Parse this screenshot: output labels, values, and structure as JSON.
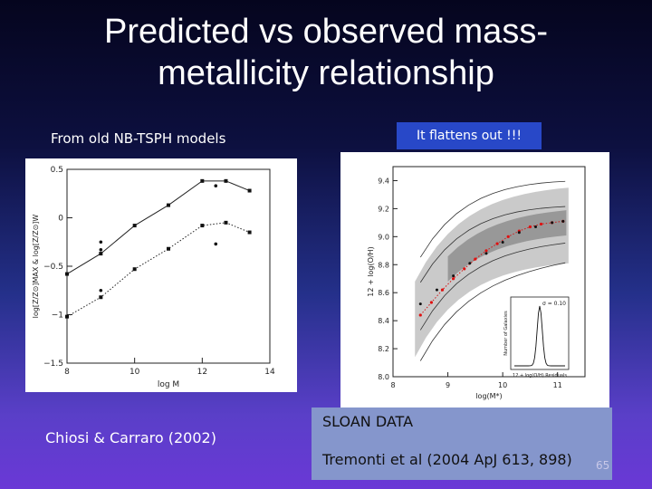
{
  "slide": {
    "title_line1": "Predicted vs observed mass-",
    "title_line2": "metallicity relationship",
    "left_caption": "From  old NB-TSPH models",
    "callout": "It flattens out !!!",
    "left_credit": "Chiosi & Carraro (2002)",
    "sloan_title": "SLOAN DATA",
    "sloan_ref": "Tremonti et al  (2004 ApJ 613, 898)",
    "page_number": "65",
    "colors": {
      "callout_bg": "#2848c8",
      "sloan_box_bg": "#8596cc"
    }
  },
  "chart_data": [
    {
      "type": "line",
      "xlim": [
        8,
        14
      ],
      "ylim": [
        -1.5,
        0.5
      ],
      "xticks": [
        "8",
        "10",
        "12",
        "14"
      ],
      "yticks": [
        "0.5",
        "0",
        "−0.5",
        "−1",
        "−1.5"
      ],
      "xlabel": "log M",
      "ylabel": "log[Z/Z⊙]MAX & log[Z/Z⊙]W",
      "series": [
        {
          "style": "solid",
          "marker": "square",
          "x": [
            8,
            9,
            10,
            11,
            12,
            12.7,
            13.4
          ],
          "y": [
            -0.58,
            -0.37,
            -0.08,
            0.13,
            0.38,
            0.38,
            0.28
          ]
        },
        {
          "style": "dotted",
          "marker": "square",
          "x": [
            8,
            9,
            10,
            11,
            12,
            12.7,
            13.4
          ],
          "y": [
            -1.02,
            -0.82,
            -0.53,
            -0.32,
            -0.08,
            -0.05,
            -0.15
          ]
        }
      ],
      "scatter": {
        "x": [
          9,
          9,
          9,
          9,
          12.4,
          12.4
        ],
        "y": [
          -0.25,
          -0.33,
          -0.75,
          -0.82,
          0.33,
          -0.27
        ]
      }
    },
    {
      "type": "scatter",
      "xlim": [
        8,
        11.5
      ],
      "ylim": [
        8.0,
        9.5
      ],
      "xticks": [
        "8",
        "9",
        "10",
        "11"
      ],
      "yticks": [
        "8.0",
        "8.2",
        "8.4",
        "8.6",
        "8.8",
        "9.0",
        "9.2",
        "9.4"
      ],
      "xlabel": "log(M*)",
      "ylabel": "12 + log(O/H)",
      "median_x": [
        8.5,
        8.8,
        9.1,
        9.4,
        9.7,
        10.0,
        10.3,
        10.6,
        10.9,
        11.1
      ],
      "median_y": [
        8.52,
        8.62,
        8.72,
        8.81,
        8.88,
        8.96,
        9.03,
        9.07,
        9.1,
        9.11
      ],
      "fit_x": [
        8.5,
        8.7,
        8.9,
        9.1,
        9.3,
        9.5,
        9.7,
        9.9,
        10.1,
        10.3,
        10.5,
        10.7,
        10.9,
        11.1
      ],
      "fit_y": [
        8.44,
        8.53,
        8.62,
        8.7,
        8.77,
        8.84,
        8.9,
        8.95,
        9.0,
        9.04,
        9.07,
        9.09,
        9.1,
        9.11
      ],
      "inset": {
        "label": "Number of Galaxies",
        "xlabel": "12 + log(O/H) Residuals",
        "sigma": "σ = 0.10",
        "yticks": [
          "2500",
          "2000",
          "1500",
          "1000",
          "500",
          "0"
        ]
      }
    }
  ]
}
